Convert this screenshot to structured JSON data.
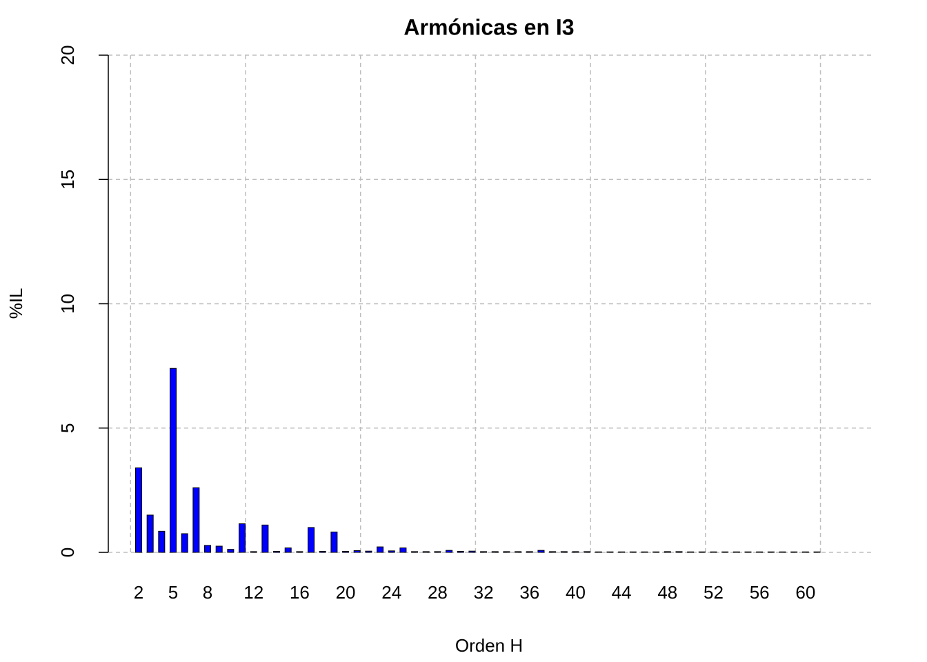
{
  "chart_data": {
    "type": "bar",
    "title": "Armónicas en I3",
    "x_label": "Orden H",
    "y_label": "%IL",
    "categories": [
      2,
      null,
      null,
      5,
      null,
      null,
      8,
      null,
      null,
      null,
      12,
      null,
      null,
      null,
      16,
      null,
      null,
      null,
      20,
      null,
      null,
      null,
      24,
      null,
      null,
      null,
      28,
      null,
      null,
      null,
      32,
      null,
      null,
      null,
      36,
      null,
      null,
      null,
      40,
      null,
      null,
      null,
      44,
      null,
      null,
      null,
      48,
      null,
      null,
      null,
      52,
      null,
      null,
      null,
      56,
      null,
      null,
      null,
      60,
      null
    ],
    "values": [
      3.4,
      1.5,
      0.85,
      7.4,
      0.75,
      2.6,
      0.28,
      0.25,
      0.12,
      1.15,
      0.03,
      1.1,
      0.04,
      0.18,
      0.03,
      1.0,
      0.04,
      0.82,
      0.04,
      0.07,
      0.05,
      0.22,
      0.06,
      0.18,
      0.03,
      0.03,
      0.03,
      0.08,
      0.04,
      0.05,
      0.03,
      0.03,
      0.03,
      0.03,
      0.03,
      0.08,
      0.03,
      0.03,
      0.03,
      0.03,
      0.02,
      0.02,
      0.02,
      0.02,
      0.02,
      0.02,
      0.03,
      0.03,
      0.02,
      0.02,
      0.02,
      0.02,
      0.02,
      0.02,
      0.02,
      0.02,
      0.02,
      0.02,
      0.02,
      0.02
    ],
    "color": "#0000ff",
    "ylim": [
      0,
      20
    ],
    "yticks": [
      0,
      5,
      10,
      15,
      20
    ],
    "grid": true,
    "xgrid": [
      1.3,
      11.3,
      21.3,
      31.3,
      41.3,
      51.3,
      61.3
    ]
  }
}
